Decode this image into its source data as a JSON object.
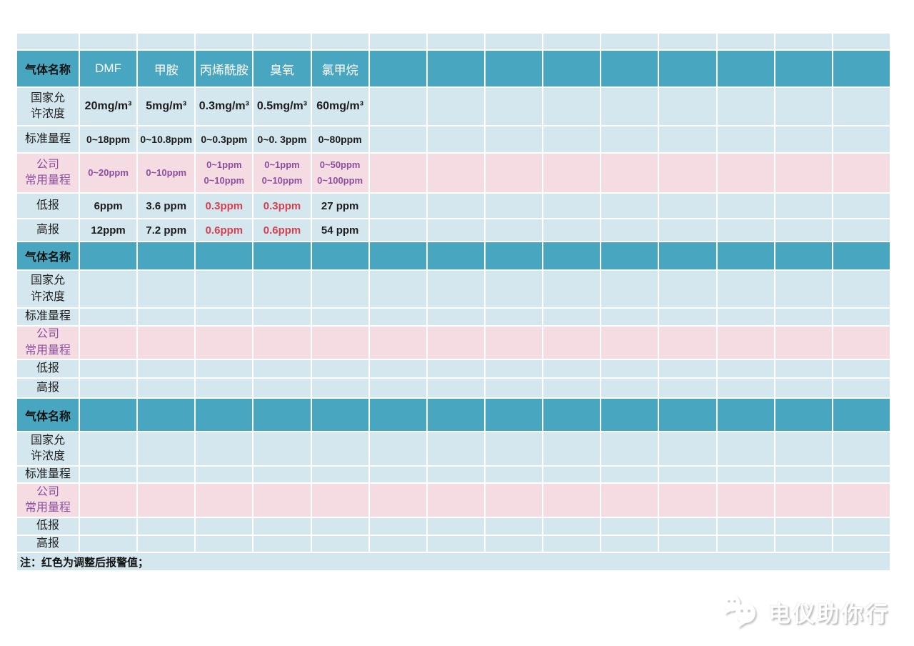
{
  "colors": {
    "header_teal": "#49a6c0",
    "cell_blue": "#d5e7ee",
    "row_pink": "#f5dce2",
    "purple_text": "#8c4fa0",
    "red_text": "#d6404e",
    "header_gas_text": "#ffffff",
    "body_text": "#1c1c1c"
  },
  "table": {
    "corner_label": "气体名称",
    "gases": [
      "DMF",
      "甲胺",
      "丙烯酰胺",
      "臭氧",
      "氯甲烷"
    ],
    "labels": {
      "national": [
        "国家允",
        "许浓度"
      ],
      "standard": "标准量程",
      "company": [
        "公司",
        "常用量程"
      ],
      "low": "低报",
      "high": "高报"
    },
    "section1": {
      "national": [
        "20mg/m³",
        "5mg/m³",
        "0.3mg/m³",
        "0.5mg/m³",
        "60mg/m³"
      ],
      "standard": [
        "0~18ppm",
        "0~10.8ppm",
        "0~0.3ppm",
        "0~0. 3ppm",
        "0~80ppm"
      ],
      "company": [
        [
          "0~20ppm"
        ],
        [
          "0~10ppm"
        ],
        [
          "0~1ppm",
          "0~10ppm"
        ],
        [
          "0~1ppm",
          "0~10ppm"
        ],
        [
          "0~50ppm",
          "0~100ppm"
        ]
      ],
      "low": [
        "6ppm",
        "3.6 ppm",
        "0.3ppm",
        "0.3ppm",
        "27 ppm"
      ],
      "high": [
        "12ppm",
        "7.2 ppm",
        "0.6ppm",
        "0.6ppm",
        "54 ppm"
      ]
    }
  },
  "note": "注：红色为调整后报警值；",
  "watermark": {
    "text": "电仪助你行",
    "icon": "wechat-style-chat-bubbles-icon"
  }
}
